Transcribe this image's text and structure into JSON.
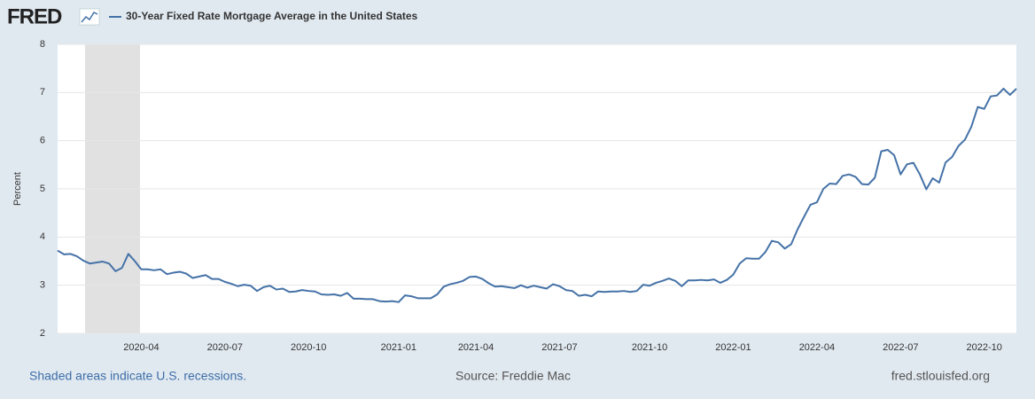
{
  "logo": "FRED",
  "chart_data": {
    "type": "line",
    "ylabel": "Percent",
    "ylim": [
      2,
      8
    ],
    "yticks": [
      2,
      3,
      4,
      5,
      6,
      7,
      8
    ],
    "grid": true,
    "categories": [
      null,
      null,
      null,
      null,
      null,
      null,
      null,
      null,
      null,
      null,
      null,
      null,
      null,
      "2020-04",
      null,
      null,
      null,
      null,
      null,
      null,
      null,
      null,
      null,
      null,
      null,
      null,
      "2020-07",
      null,
      null,
      null,
      null,
      null,
      null,
      null,
      null,
      null,
      null,
      null,
      null,
      "2020-10",
      null,
      null,
      null,
      null,
      null,
      null,
      null,
      null,
      null,
      null,
      null,
      null,
      null,
      "2021-01",
      null,
      null,
      null,
      null,
      null,
      null,
      null,
      null,
      null,
      null,
      null,
      "2021-04",
      null,
      null,
      null,
      null,
      null,
      null,
      null,
      null,
      null,
      null,
      null,
      null,
      "2021-07",
      null,
      null,
      null,
      null,
      null,
      null,
      null,
      null,
      null,
      null,
      null,
      null,
      null,
      "2021-10",
      null,
      null,
      null,
      null,
      null,
      null,
      null,
      null,
      null,
      null,
      null,
      null,
      "2022-01",
      null,
      null,
      null,
      null,
      null,
      null,
      null,
      null,
      null,
      null,
      null,
      null,
      "2022-04",
      null,
      null,
      null,
      null,
      null,
      null,
      null,
      null,
      null,
      null,
      null,
      null,
      "2022-07",
      null,
      null,
      null,
      null,
      null,
      null,
      null,
      null,
      null,
      null,
      null,
      null,
      "2022-10",
      null,
      null,
      null,
      null,
      null
    ],
    "series": [
      {
        "name": "30-Year Fixed Rate Mortgage Average in the United States",
        "color": "#4572a7",
        "values": [
          3.72,
          3.64,
          3.65,
          3.6,
          3.51,
          3.45,
          3.47,
          3.49,
          3.45,
          3.29,
          3.36,
          3.65,
          3.5,
          3.33,
          3.33,
          3.31,
          3.33,
          3.23,
          3.26,
          3.28,
          3.24,
          3.15,
          3.18,
          3.21,
          3.13,
          3.13,
          3.07,
          3.03,
          2.98,
          3.01,
          2.99,
          2.88,
          2.96,
          2.99,
          2.91,
          2.93,
          2.86,
          2.87,
          2.9,
          2.88,
          2.87,
          2.81,
          2.8,
          2.81,
          2.78,
          2.84,
          2.72,
          2.72,
          2.71,
          2.71,
          2.67,
          2.66,
          2.67,
          2.65,
          2.79,
          2.77,
          2.73,
          2.73,
          2.73,
          2.81,
          2.97,
          3.02,
          3.05,
          3.09,
          3.17,
          3.18,
          3.13,
          3.04,
          2.97,
          2.98,
          2.96,
          2.94,
          3.0,
          2.95,
          2.99,
          2.96,
          2.93,
          3.02,
          2.98,
          2.9,
          2.88,
          2.78,
          2.8,
          2.77,
          2.87,
          2.86,
          2.87,
          2.87,
          2.88,
          2.86,
          2.88,
          3.01,
          2.99,
          3.05,
          3.09,
          3.14,
          3.09,
          2.98,
          3.1,
          3.1,
          3.11,
          3.1,
          3.12,
          3.05,
          3.11,
          3.22,
          3.45,
          3.56,
          3.55,
          3.55,
          3.69,
          3.92,
          3.89,
          3.76,
          3.85,
          4.16,
          4.42,
          4.67,
          4.72,
          5.0,
          5.11,
          5.1,
          5.27,
          5.3,
          5.25,
          5.1,
          5.09,
          5.23,
          5.78,
          5.81,
          5.7,
          5.3,
          5.51,
          5.54,
          5.3,
          4.99,
          5.22,
          5.13,
          5.55,
          5.66,
          5.89,
          6.02,
          6.29,
          6.7,
          6.66,
          6.92,
          6.94,
          7.08,
          6.95,
          7.08
        ]
      }
    ],
    "recession_note": "Shaded areas indicate U.S. recessions.",
    "source": "Source: Freddie Mac",
    "site": "fred.stlouisfed.org"
  }
}
